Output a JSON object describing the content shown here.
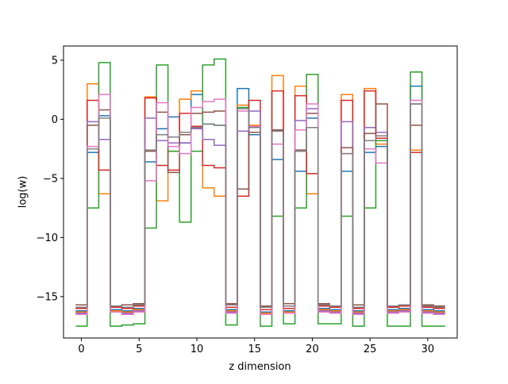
{
  "chart_data": {
    "type": "line",
    "drawstyle": "steps-mid",
    "title": "",
    "xlabel": "z dimension",
    "ylabel": "log(w)",
    "xlim": [
      -1.55,
      32.55
    ],
    "ylim": [
      -18.5,
      6.2
    ],
    "xticks": [
      0,
      5,
      10,
      15,
      20,
      25,
      30
    ],
    "yticks": [
      -15,
      -10,
      -5,
      0,
      5
    ],
    "xtick_labels": [
      "0",
      "5",
      "10",
      "15",
      "20",
      "25",
      "30"
    ],
    "ytick_labels": [
      "−15",
      "−10",
      "−5",
      "0",
      "5"
    ],
    "grid": false,
    "legend": "none",
    "x": [
      0,
      1,
      2,
      3,
      4,
      5,
      6,
      7,
      8,
      9,
      10,
      11,
      12,
      13,
      14,
      15,
      16,
      17,
      18,
      19,
      20,
      21,
      22,
      23,
      24,
      25,
      26,
      27,
      28,
      29,
      30,
      31
    ],
    "series": [
      {
        "color": "#1f77b4",
        "values": [
          -16.2,
          -2.8,
          0.3,
          -16.1,
          -16.2,
          -16.0,
          -3.6,
          -0.8,
          0.2,
          -2.0,
          2.1,
          -0.4,
          -0.5,
          -16.1,
          2.6,
          -1.3,
          -16.3,
          -3.4,
          -16.2,
          -4.4,
          0.1,
          -16.0,
          -16.1,
          -4.4,
          -16.2,
          -2.8,
          -2.3,
          -16.1,
          -16.0,
          2.8,
          -16.1,
          -16.2
        ]
      },
      {
        "color": "#ff7f0e",
        "values": [
          -16.3,
          3.0,
          -6.3,
          -16.2,
          -16.3,
          -16.1,
          1.9,
          -6.9,
          -2.7,
          1.7,
          2.4,
          -5.8,
          -6.5,
          -16.2,
          1.2,
          -0.5,
          -16.4,
          3.7,
          -16.3,
          2.8,
          -6.3,
          -16.1,
          -16.2,
          2.1,
          -16.3,
          2.6,
          -2.1,
          -16.2,
          -16.1,
          -2.6,
          -16.2,
          -16.3
        ]
      },
      {
        "color": "#2ca02c",
        "values": [
          -17.5,
          -7.5,
          4.8,
          -17.5,
          -17.4,
          -17.3,
          -9.2,
          4.6,
          -2.7,
          -8.7,
          -2.7,
          4.6,
          5.1,
          -17.4,
          1.0,
          -1.1,
          -17.5,
          -8.2,
          -17.3,
          -7.5,
          3.8,
          -17.3,
          -17.3,
          -8.2,
          -17.5,
          -7.5,
          -1.8,
          -17.5,
          -17.5,
          4.0,
          -17.5,
          -17.5
        ]
      },
      {
        "color": "#d62728",
        "values": [
          -16.0,
          1.6,
          -4.3,
          -15.9,
          -16.0,
          -15.8,
          1.8,
          -3.9,
          -4.3,
          0.5,
          -0.6,
          -3.9,
          -4.1,
          -15.9,
          -6.5,
          1.6,
          -16.1,
          2.4,
          -16.0,
          2.0,
          -4.6,
          -15.8,
          -15.9,
          1.6,
          -16.0,
          2.4,
          -1.6,
          -15.9,
          -15.8,
          -2.8,
          -15.9,
          -16.0
        ]
      },
      {
        "color": "#9467bd",
        "values": [
          -16.4,
          -0.2,
          -1.7,
          -16.3,
          -16.4,
          -16.2,
          0.1,
          -1.8,
          -2.0,
          -2.0,
          -0.8,
          -1.7,
          -2.2,
          -16.3,
          -1.0,
          0.7,
          -16.5,
          -1.0,
          -16.4,
          -0.1,
          0.9,
          -16.2,
          -16.3,
          -0.2,
          -16.4,
          -0.7,
          -1.1,
          -16.3,
          -16.2,
          1.3,
          -16.3,
          -16.4
        ]
      },
      {
        "color": "#8c564b",
        "values": [
          -15.7,
          -0.5,
          0.8,
          -15.8,
          -15.7,
          -15.6,
          -2.7,
          0.6,
          -4.5,
          -1.3,
          0.5,
          0.6,
          0.7,
          -15.6,
          -5.9,
          -1.1,
          -15.8,
          -0.9,
          -15.6,
          -2.6,
          0.5,
          -15.6,
          -15.8,
          -2.4,
          -15.7,
          -1.2,
          1.3,
          -15.8,
          -15.7,
          -0.5,
          -15.7,
          -15.8
        ]
      },
      {
        "color": "#e377c2",
        "values": [
          -16.5,
          -2.3,
          2.1,
          -16.3,
          -16.5,
          -16.3,
          -5.2,
          1.4,
          -2.3,
          -2.9,
          1.0,
          1.5,
          1.7,
          -16.4,
          0.7,
          -0.6,
          -16.5,
          -2.1,
          -16.4,
          -0.9,
          1.3,
          -16.3,
          -16.4,
          -2.9,
          -16.5,
          -2.5,
          -3.7,
          -16.4,
          -16.3,
          1.6,
          -16.4,
          -16.5
        ]
      },
      {
        "color": "#7f7f7f",
        "values": [
          -15.9,
          -2.5,
          0.1,
          -15.8,
          -15.9,
          -15.7,
          -2.6,
          -1.3,
          -1.5,
          -1.1,
          -0.7,
          -0.4,
          -0.5,
          -15.7,
          0.9,
          -0.7,
          -15.9,
          -1.0,
          -15.8,
          -2.7,
          -0.7,
          -15.7,
          -15.8,
          -2.9,
          -15.9,
          -1.8,
          -1.4,
          -15.8,
          -15.7,
          1.3,
          -15.8,
          -15.9
        ]
      }
    ]
  }
}
